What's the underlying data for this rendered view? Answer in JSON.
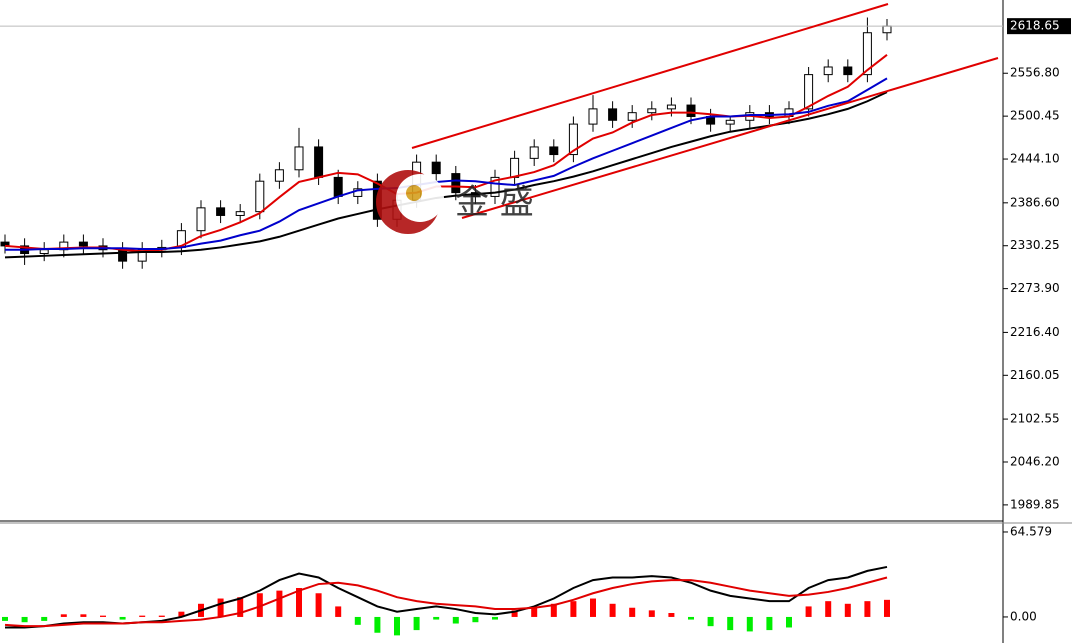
{
  "chart_data": [
    {
      "type": "candlestick",
      "ylim": [
        1970,
        2653
      ],
      "yticks": [
        {
          "value": 2556.8,
          "label": "2556.80"
        },
        {
          "value": 2500.45,
          "label": "2500.45"
        },
        {
          "value": 2444.1,
          "label": "2444.10"
        },
        {
          "value": 2386.6,
          "label": "2386.60"
        },
        {
          "value": 2330.25,
          "label": "2330.25"
        },
        {
          "value": 2273.9,
          "label": "2273.90"
        },
        {
          "value": 2216.4,
          "label": "2216.40"
        },
        {
          "value": 2160.05,
          "label": "2160.05"
        },
        {
          "value": 2102.55,
          "label": "2102.55"
        },
        {
          "value": 2046.2,
          "label": "2046.20"
        },
        {
          "value": 1989.85,
          "label": "1989.85"
        }
      ],
      "last_price": 2618.65,
      "watermark": "金 盛",
      "up_color": "#ffffff",
      "down_color": "#000000",
      "open": [
        2335,
        2330,
        2320,
        2325,
        2335,
        2330,
        2325,
        2310,
        2325,
        2328,
        2350,
        2380,
        2370,
        2375,
        2415,
        2430,
        2460,
        2420,
        2395,
        2415,
        2365,
        2390,
        2440,
        2425,
        2400,
        2395,
        2420,
        2445,
        2460,
        2450,
        2490,
        2510,
        2495,
        2505,
        2510,
        2515,
        2500,
        2490,
        2495,
        2505,
        2500,
        2510,
        2555,
        2565,
        2555,
        2610
      ],
      "high": [
        2345,
        2340,
        2335,
        2345,
        2345,
        2340,
        2335,
        2335,
        2338,
        2360,
        2390,
        2390,
        2385,
        2425,
        2440,
        2485,
        2470,
        2430,
        2415,
        2425,
        2400,
        2450,
        2450,
        2435,
        2410,
        2430,
        2455,
        2470,
        2470,
        2500,
        2528,
        2520,
        2515,
        2520,
        2525,
        2525,
        2510,
        2500,
        2515,
        2515,
        2520,
        2565,
        2575,
        2575,
        2630,
        2628
      ],
      "low": [
        2320,
        2305,
        2310,
        2315,
        2320,
        2315,
        2300,
        2300,
        2315,
        2318,
        2340,
        2360,
        2360,
        2365,
        2405,
        2420,
        2410,
        2385,
        2385,
        2355,
        2355,
        2380,
        2415,
        2390,
        2385,
        2385,
        2410,
        2435,
        2440,
        2440,
        2480,
        2485,
        2485,
        2495,
        2500,
        2490,
        2480,
        2480,
        2485,
        2490,
        2490,
        2500,
        2545,
        2545,
        2545,
        2600
      ],
      "close": [
        2330,
        2320,
        2325,
        2335,
        2330,
        2325,
        2310,
        2325,
        2328,
        2350,
        2380,
        2370,
        2375,
        2415,
        2430,
        2460,
        2420,
        2395,
        2405,
        2365,
        2390,
        2440,
        2425,
        2400,
        2395,
        2420,
        2445,
        2460,
        2450,
        2490,
        2510,
        2495,
        2505,
        2510,
        2515,
        2500,
        2490,
        2495,
        2505,
        2500,
        2510,
        2555,
        2565,
        2555,
        2610,
        2618.65
      ],
      "series": [
        {
          "color": "#e00000",
          "values": [
            2330,
            2328,
            2326,
            2327,
            2328,
            2328,
            2325,
            2323,
            2325,
            2330,
            2343,
            2351,
            2361,
            2373,
            2394,
            2414,
            2420,
            2426,
            2424,
            2412,
            2398,
            2400,
            2408,
            2408,
            2407,
            2416,
            2421,
            2427,
            2436,
            2455,
            2471,
            2479,
            2492,
            2502,
            2505,
            2505,
            2503,
            2500,
            2501,
            2498,
            2500,
            2513,
            2527,
            2539,
            2561,
            2581
          ]
        },
        {
          "color": "#0000cc",
          "values": [
            2325,
            2325,
            2326,
            2326,
            2327,
            2327,
            2327,
            2326,
            2326,
            2328,
            2333,
            2337,
            2344,
            2350,
            2362,
            2377,
            2386,
            2395,
            2403,
            2405,
            2406,
            2410,
            2414,
            2416,
            2415,
            2412,
            2410,
            2416,
            2422,
            2434,
            2445,
            2455,
            2465,
            2475,
            2485,
            2495,
            2500,
            2500,
            2502,
            2502,
            2503,
            2506,
            2514,
            2520,
            2535,
            2550
          ]
        },
        {
          "color": "#000000",
          "values": [
            2315,
            2316,
            2317,
            2318,
            2319,
            2320,
            2321,
            2322,
            2322,
            2323,
            2325,
            2328,
            2332,
            2336,
            2342,
            2350,
            2358,
            2366,
            2372,
            2378,
            2383,
            2388,
            2393,
            2396,
            2398,
            2400,
            2404,
            2410,
            2415,
            2421,
            2428,
            2436,
            2444,
            2452,
            2460,
            2467,
            2474,
            2480,
            2484,
            2488,
            2492,
            2497,
            2503,
            2510,
            2520,
            2532
          ]
        }
      ]
    },
    {
      "type": "macd",
      "ylim": [
        -19.8,
        71.4
      ],
      "yticks": [
        64.579,
        {
          "value": 0,
          "label": "0.00"
        }
      ],
      "pos_color": "#ff0000",
      "neg_color": "#00ee00",
      "histogram": [
        -3,
        -4,
        -3,
        2,
        2,
        1,
        -2,
        1,
        1,
        4,
        10,
        14,
        15,
        18,
        20,
        22,
        18,
        8,
        -6,
        -12,
        -14,
        -10,
        -2,
        -5,
        -4,
        -2,
        5,
        8,
        10,
        12,
        14,
        10,
        7,
        5,
        3,
        -2,
        -7,
        -10,
        -11,
        -10,
        -8,
        8,
        12,
        10,
        12,
        13
      ],
      "series": [
        {
          "color": "#000000",
          "values": [
            -8,
            -8,
            -7,
            -5,
            -4,
            -4,
            -5,
            -4,
            -3,
            0,
            5,
            10,
            14,
            20,
            28,
            33,
            30,
            22,
            15,
            8,
            4,
            6,
            8,
            6,
            3,
            2,
            4,
            8,
            14,
            22,
            28,
            30,
            30,
            31,
            30,
            26,
            20,
            16,
            14,
            12,
            12,
            22,
            28,
            30,
            35,
            38
          ]
        },
        {
          "color": "#e00000",
          "values": [
            -6,
            -7,
            -7,
            -6,
            -5,
            -5,
            -5,
            -4,
            -4,
            -3,
            -2,
            0,
            3,
            8,
            14,
            20,
            25,
            26,
            24,
            20,
            15,
            12,
            10,
            9,
            8,
            6,
            6,
            7,
            9,
            13,
            18,
            22,
            25,
            27,
            28,
            28,
            26,
            23,
            20,
            18,
            16,
            17,
            19,
            22,
            26,
            30
          ]
        }
      ]
    }
  ]
}
